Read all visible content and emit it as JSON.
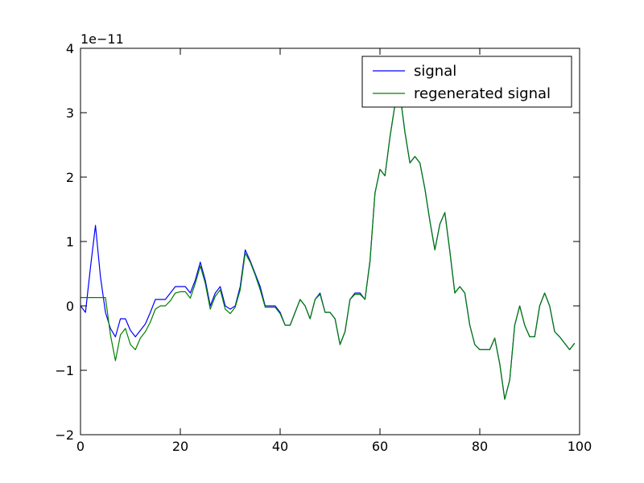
{
  "chart_data": {
    "type": "line",
    "title": "",
    "xlabel": "",
    "ylabel": "",
    "y_offset_label": "1e−11",
    "xlim": [
      0,
      100
    ],
    "ylim": [
      -2,
      4
    ],
    "y_scale_factor": 1e-11,
    "x_ticks": [
      0,
      20,
      40,
      60,
      80,
      100
    ],
    "y_ticks": [
      -2,
      -1,
      0,
      1,
      2,
      3,
      4
    ],
    "x_tick_labels": [
      "0",
      "20",
      "40",
      "60",
      "80",
      "100"
    ],
    "y_tick_labels": [
      "−2",
      "−1",
      "0",
      "1",
      "2",
      "3",
      "4"
    ],
    "grid": false,
    "legend_position": "top-right",
    "x": [
      0,
      1,
      2,
      3,
      4,
      5,
      6,
      7,
      8,
      9,
      10,
      11,
      12,
      13,
      14,
      15,
      16,
      17,
      18,
      19,
      20,
      21,
      22,
      23,
      24,
      25,
      26,
      27,
      28,
      29,
      30,
      31,
      32,
      33,
      34,
      35,
      36,
      37,
      38,
      39,
      40,
      41,
      42,
      43,
      44,
      45,
      46,
      47,
      48,
      49,
      50,
      51,
      52,
      53,
      54,
      55,
      56,
      57,
      58,
      59,
      60,
      61,
      62,
      63,
      64,
      65,
      66,
      67,
      68,
      69,
      70,
      71,
      72,
      73,
      74,
      75,
      76,
      77,
      78,
      79,
      80,
      81,
      82,
      83,
      84,
      85,
      86,
      87,
      88,
      89,
      90,
      91,
      92,
      93,
      94,
      95,
      96,
      97,
      98,
      99
    ],
    "series": [
      {
        "name": "signal",
        "color": "#0000ff",
        "values": [
          0.0,
          -0.1,
          0.6,
          1.25,
          0.45,
          -0.1,
          -0.35,
          -0.48,
          -0.2,
          -0.2,
          -0.38,
          -0.48,
          -0.38,
          -0.28,
          -0.1,
          0.1,
          0.1,
          0.1,
          0.2,
          0.3,
          0.3,
          0.3,
          0.2,
          0.4,
          0.68,
          0.4,
          0.0,
          0.2,
          0.3,
          0.0,
          -0.05,
          0.0,
          0.3,
          0.87,
          0.7,
          0.5,
          0.3,
          0.0,
          0.0,
          0.0,
          -0.1,
          -0.3,
          -0.3,
          -0.1,
          0.1,
          0.0,
          -0.2,
          0.1,
          0.2,
          -0.1,
          -0.1,
          -0.2,
          -0.6,
          -0.4,
          0.1,
          0.2,
          0.2,
          0.1,
          0.7,
          1.75,
          2.12,
          2.02,
          2.62,
          3.12,
          3.3,
          2.7,
          2.22,
          2.32,
          2.22,
          1.82,
          1.32,
          0.87,
          1.27,
          1.45,
          0.85,
          0.2,
          0.3,
          0.2,
          -0.3,
          -0.6,
          -0.68,
          -0.68,
          -0.68,
          -0.5,
          -0.9,
          -1.45,
          -1.15,
          -0.3,
          0.0,
          -0.3,
          -0.48,
          -0.48,
          0.0,
          0.2,
          0.0,
          -0.4,
          -0.48,
          -0.58,
          -0.68,
          -0.58
        ]
      },
      {
        "name": "regenerated signal",
        "color": "#008000",
        "values": [
          0.13,
          0.13,
          0.13,
          0.13,
          0.13,
          0.13,
          -0.45,
          -0.85,
          -0.45,
          -0.35,
          -0.6,
          -0.68,
          -0.5,
          -0.4,
          -0.25,
          -0.05,
          0.0,
          0.0,
          0.08,
          0.2,
          0.22,
          0.22,
          0.12,
          0.35,
          0.62,
          0.35,
          -0.05,
          0.15,
          0.25,
          -0.05,
          -0.12,
          -0.02,
          0.25,
          0.82,
          0.68,
          0.48,
          0.25,
          -0.02,
          -0.02,
          -0.02,
          -0.12,
          -0.3,
          -0.3,
          -0.1,
          0.1,
          0.0,
          -0.2,
          0.1,
          0.18,
          -0.1,
          -0.1,
          -0.2,
          -0.6,
          -0.4,
          0.1,
          0.18,
          0.18,
          0.1,
          0.68,
          1.75,
          2.12,
          2.02,
          2.62,
          3.12,
          3.3,
          2.7,
          2.22,
          2.32,
          2.22,
          1.82,
          1.32,
          0.87,
          1.27,
          1.45,
          0.85,
          0.2,
          0.3,
          0.2,
          -0.3,
          -0.6,
          -0.68,
          -0.68,
          -0.68,
          -0.5,
          -0.9,
          -1.45,
          -1.15,
          -0.3,
          0.0,
          -0.3,
          -0.48,
          -0.48,
          0.0,
          0.2,
          0.0,
          -0.4,
          -0.48,
          -0.58,
          -0.68,
          -0.58
        ]
      }
    ]
  }
}
